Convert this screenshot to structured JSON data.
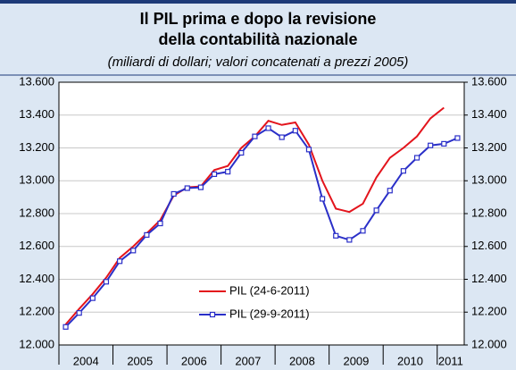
{
  "chart_data": {
    "type": "line",
    "title": [
      "Il PIL prima e dopo la revisione",
      "della contabilità nazionale"
    ],
    "subtitle": "(miliardi di dollari; valori concatenati a prezzi 2005)",
    "x": [
      2004.125,
      2004.375,
      2004.625,
      2004.875,
      2005.125,
      2005.375,
      2005.625,
      2005.875,
      2006.125,
      2006.375,
      2006.625,
      2006.875,
      2007.125,
      2007.375,
      2007.625,
      2007.875,
      2008.125,
      2008.375,
      2008.625,
      2008.875,
      2009.125,
      2009.375,
      2009.625,
      2009.875,
      2010.125,
      2010.375,
      2010.625,
      2010.875,
      2011.125,
      2011.375
    ],
    "xlim": [
      2004,
      2011.5
    ],
    "xticks": [
      {
        "value": 2004.5,
        "label": "2004"
      },
      {
        "value": 2005.5,
        "label": "2005"
      },
      {
        "value": 2006.5,
        "label": "2006"
      },
      {
        "value": 2007.5,
        "label": "2007"
      },
      {
        "value": 2008.5,
        "label": "2008"
      },
      {
        "value": 2009.5,
        "label": "2009"
      },
      {
        "value": 2010.5,
        "label": "2010"
      },
      {
        "value": 2011.25,
        "label": "2011"
      }
    ],
    "ylim": [
      12000,
      13600
    ],
    "yticks": [
      {
        "value": 12000,
        "label": "12.000"
      },
      {
        "value": 12200,
        "label": "12.200"
      },
      {
        "value": 12400,
        "label": "12.400"
      },
      {
        "value": 12600,
        "label": "12.600"
      },
      {
        "value": 12800,
        "label": "12.800"
      },
      {
        "value": 13000,
        "label": "13.000"
      },
      {
        "value": 13200,
        "label": "13.200"
      },
      {
        "value": 13400,
        "label": "13.400"
      },
      {
        "value": 13600,
        "label": "13.600"
      }
    ],
    "y2lim": [
      12000,
      13600
    ],
    "y2ticks": [
      {
        "value": 12000,
        "label": "12.000"
      },
      {
        "value": 12200,
        "label": "12.200"
      },
      {
        "value": 12400,
        "label": "12.400"
      },
      {
        "value": 12600,
        "label": "12.600"
      },
      {
        "value": 12800,
        "label": "12.800"
      },
      {
        "value": 13000,
        "label": "13.000"
      },
      {
        "value": 13200,
        "label": "13.200"
      },
      {
        "value": 13400,
        "label": "13.400"
      },
      {
        "value": 13600,
        "label": "13.600"
      }
    ],
    "grid": true,
    "legend": "lower center",
    "series": [
      {
        "name": "PIL (24-6-2011)",
        "color": "#e3141c",
        "marker": false,
        "values": [
          12125,
          12220,
          12310,
          12410,
          12530,
          12600,
          12680,
          12760,
          12910,
          12960,
          12965,
          13065,
          13090,
          13200,
          13270,
          13365,
          13340,
          13355,
          13220,
          13000,
          12830,
          12810,
          12860,
          13020,
          13140,
          13200,
          13270,
          13380,
          13445,
          null
        ]
      },
      {
        "name": "PIL (29-9-2011)",
        "color": "#2a2fc8",
        "marker": true,
        "values": [
          12110,
          12195,
          12285,
          12385,
          12510,
          12575,
          12670,
          12740,
          12920,
          12955,
          12960,
          13040,
          13055,
          13170,
          13270,
          13320,
          13265,
          13305,
          13190,
          12890,
          12665,
          12640,
          12695,
          12820,
          12940,
          13060,
          13140,
          13215,
          13225,
          13260
        ]
      }
    ]
  }
}
